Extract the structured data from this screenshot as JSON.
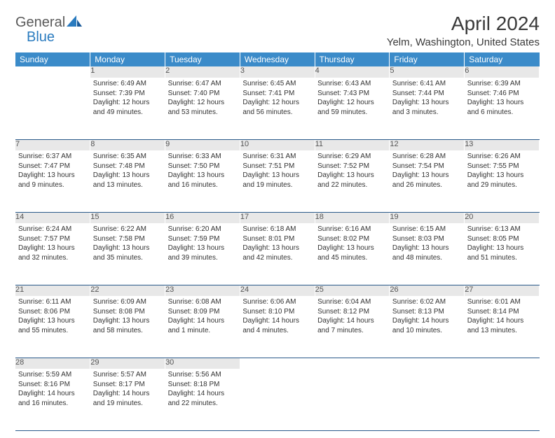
{
  "brand": {
    "top": "General",
    "bottom": "Blue"
  },
  "title": "April 2024",
  "location": "Yelm, Washington, United States",
  "colors": {
    "header_bg": "#3b8bc9",
    "header_text": "#ffffff",
    "daynum_bg": "#e8e8e8",
    "rule": "#2a5a8a",
    "logo_gray": "#5a5a5a",
    "logo_blue": "#2a7bbf"
  },
  "weekday_labels": [
    "Sunday",
    "Monday",
    "Tuesday",
    "Wednesday",
    "Thursday",
    "Friday",
    "Saturday"
  ],
  "weeks": [
    [
      null,
      {
        "n": "1",
        "sr": "6:49 AM",
        "ss": "7:39 PM",
        "dl": "12 hours and 49 minutes."
      },
      {
        "n": "2",
        "sr": "6:47 AM",
        "ss": "7:40 PM",
        "dl": "12 hours and 53 minutes."
      },
      {
        "n": "3",
        "sr": "6:45 AM",
        "ss": "7:41 PM",
        "dl": "12 hours and 56 minutes."
      },
      {
        "n": "4",
        "sr": "6:43 AM",
        "ss": "7:43 PM",
        "dl": "12 hours and 59 minutes."
      },
      {
        "n": "5",
        "sr": "6:41 AM",
        "ss": "7:44 PM",
        "dl": "13 hours and 3 minutes."
      },
      {
        "n": "6",
        "sr": "6:39 AM",
        "ss": "7:46 PM",
        "dl": "13 hours and 6 minutes."
      }
    ],
    [
      {
        "n": "7",
        "sr": "6:37 AM",
        "ss": "7:47 PM",
        "dl": "13 hours and 9 minutes."
      },
      {
        "n": "8",
        "sr": "6:35 AM",
        "ss": "7:48 PM",
        "dl": "13 hours and 13 minutes."
      },
      {
        "n": "9",
        "sr": "6:33 AM",
        "ss": "7:50 PM",
        "dl": "13 hours and 16 minutes."
      },
      {
        "n": "10",
        "sr": "6:31 AM",
        "ss": "7:51 PM",
        "dl": "13 hours and 19 minutes."
      },
      {
        "n": "11",
        "sr": "6:29 AM",
        "ss": "7:52 PM",
        "dl": "13 hours and 22 minutes."
      },
      {
        "n": "12",
        "sr": "6:28 AM",
        "ss": "7:54 PM",
        "dl": "13 hours and 26 minutes."
      },
      {
        "n": "13",
        "sr": "6:26 AM",
        "ss": "7:55 PM",
        "dl": "13 hours and 29 minutes."
      }
    ],
    [
      {
        "n": "14",
        "sr": "6:24 AM",
        "ss": "7:57 PM",
        "dl": "13 hours and 32 minutes."
      },
      {
        "n": "15",
        "sr": "6:22 AM",
        "ss": "7:58 PM",
        "dl": "13 hours and 35 minutes."
      },
      {
        "n": "16",
        "sr": "6:20 AM",
        "ss": "7:59 PM",
        "dl": "13 hours and 39 minutes."
      },
      {
        "n": "17",
        "sr": "6:18 AM",
        "ss": "8:01 PM",
        "dl": "13 hours and 42 minutes."
      },
      {
        "n": "18",
        "sr": "6:16 AM",
        "ss": "8:02 PM",
        "dl": "13 hours and 45 minutes."
      },
      {
        "n": "19",
        "sr": "6:15 AM",
        "ss": "8:03 PM",
        "dl": "13 hours and 48 minutes."
      },
      {
        "n": "20",
        "sr": "6:13 AM",
        "ss": "8:05 PM",
        "dl": "13 hours and 51 minutes."
      }
    ],
    [
      {
        "n": "21",
        "sr": "6:11 AM",
        "ss": "8:06 PM",
        "dl": "13 hours and 55 minutes."
      },
      {
        "n": "22",
        "sr": "6:09 AM",
        "ss": "8:08 PM",
        "dl": "13 hours and 58 minutes."
      },
      {
        "n": "23",
        "sr": "6:08 AM",
        "ss": "8:09 PM",
        "dl": "14 hours and 1 minute."
      },
      {
        "n": "24",
        "sr": "6:06 AM",
        "ss": "8:10 PM",
        "dl": "14 hours and 4 minutes."
      },
      {
        "n": "25",
        "sr": "6:04 AM",
        "ss": "8:12 PM",
        "dl": "14 hours and 7 minutes."
      },
      {
        "n": "26",
        "sr": "6:02 AM",
        "ss": "8:13 PM",
        "dl": "14 hours and 10 minutes."
      },
      {
        "n": "27",
        "sr": "6:01 AM",
        "ss": "8:14 PM",
        "dl": "14 hours and 13 minutes."
      }
    ],
    [
      {
        "n": "28",
        "sr": "5:59 AM",
        "ss": "8:16 PM",
        "dl": "14 hours and 16 minutes."
      },
      {
        "n": "29",
        "sr": "5:57 AM",
        "ss": "8:17 PM",
        "dl": "14 hours and 19 minutes."
      },
      {
        "n": "30",
        "sr": "5:56 AM",
        "ss": "8:18 PM",
        "dl": "14 hours and 22 minutes."
      },
      null,
      null,
      null,
      null
    ]
  ],
  "labels": {
    "sunrise": "Sunrise:",
    "sunset": "Sunset:",
    "daylight": "Daylight:"
  }
}
